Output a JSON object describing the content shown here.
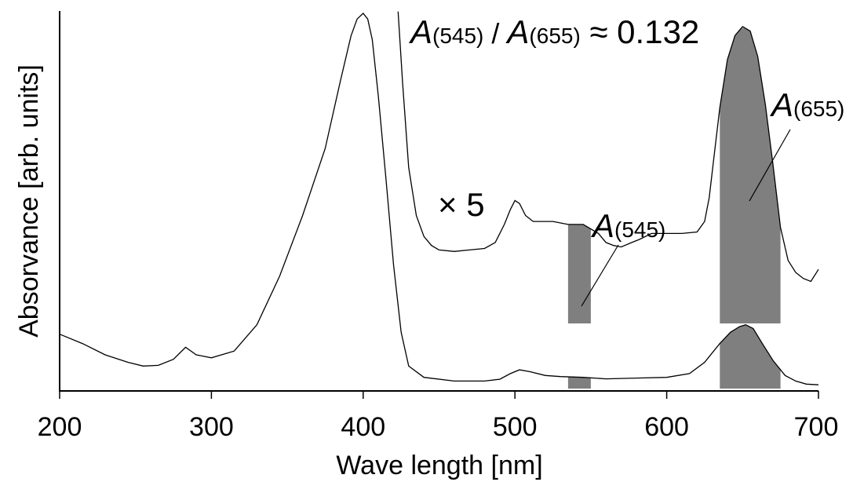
{
  "chart_data": {
    "type": "line",
    "xlabel": "Wave length [nm]",
    "ylabel": "Absorvance [arb. units]",
    "xlim": [
      200,
      700
    ],
    "ylim": [
      0,
      1
    ],
    "x_ticks": [
      200,
      300,
      400,
      500,
      600,
      700
    ],
    "y_ticks": [],
    "grid": false,
    "series": [
      {
        "name": "",
        "x": [
          200,
          215,
          230,
          245,
          255,
          265,
          275,
          283,
          290,
          300,
          315,
          330,
          345,
          360,
          375,
          385,
          392,
          396,
          400,
          403,
          406,
          410,
          415,
          420,
          425,
          430,
          440,
          460,
          480,
          490,
          497,
          503,
          510,
          520,
          530,
          545,
          560,
          580,
          600,
          615,
          625,
          635,
          642,
          648,
          652,
          657,
          663,
          670,
          678,
          685,
          692,
          700
        ],
        "y": [
          0.145,
          0.12,
          0.09,
          0.07,
          0.06,
          0.062,
          0.078,
          0.11,
          0.09,
          0.082,
          0.1,
          0.17,
          0.3,
          0.46,
          0.64,
          0.82,
          0.94,
          0.985,
          1.0,
          0.985,
          0.93,
          0.78,
          0.56,
          0.33,
          0.15,
          0.06,
          0.03,
          0.02,
          0.02,
          0.025,
          0.04,
          0.05,
          0.045,
          0.035,
          0.032,
          0.03,
          0.026,
          0.028,
          0.03,
          0.04,
          0.07,
          0.12,
          0.15,
          0.165,
          0.17,
          0.16,
          0.12,
          0.075,
          0.035,
          0.02,
          0.012,
          0.01
        ]
      },
      {
        "name": "× 5",
        "x": [
          423,
          426,
          430,
          435,
          440,
          445,
          450,
          460,
          470,
          480,
          487,
          493,
          497,
          500,
          503,
          507,
          512,
          518,
          525,
          535,
          545,
          555,
          560,
          565,
          570,
          577,
          582,
          590,
          600,
          610,
          620,
          625,
          628,
          631,
          635,
          640,
          645,
          650,
          655,
          660,
          665,
          670,
          675,
          680,
          685,
          690,
          695,
          700
        ],
        "y": [
          1.04,
          0.8,
          0.52,
          0.36,
          0.29,
          0.26,
          0.245,
          0.24,
          0.245,
          0.25,
          0.27,
          0.33,
          0.38,
          0.41,
          0.4,
          0.36,
          0.34,
          0.34,
          0.34,
          0.33,
          0.33,
          0.3,
          0.27,
          0.26,
          0.255,
          0.27,
          0.28,
          0.3,
          0.3,
          0.3,
          0.305,
          0.34,
          0.42,
          0.55,
          0.72,
          0.88,
          0.96,
          0.99,
          0.975,
          0.89,
          0.73,
          0.53,
          0.32,
          0.21,
          0.17,
          0.15,
          0.14,
          0.18
        ]
      }
    ],
    "shaded_bands": [
      {
        "name": "A(545)",
        "x_range": [
          535,
          550
        ]
      },
      {
        "name": "A(655)",
        "x_range": [
          635,
          675
        ]
      }
    ],
    "annotations": {
      "scale_label": "× 5",
      "a545": {
        "letter": "A",
        "sub": "(545)"
      },
      "a655": {
        "letter": "A",
        "sub": "(655)"
      },
      "ratio": {
        "letter1": "A",
        "sub1": "(545)",
        "slash": " / ",
        "letter2": "A",
        "sub2": "(655)",
        "value": " ≈ 0.132"
      }
    }
  }
}
